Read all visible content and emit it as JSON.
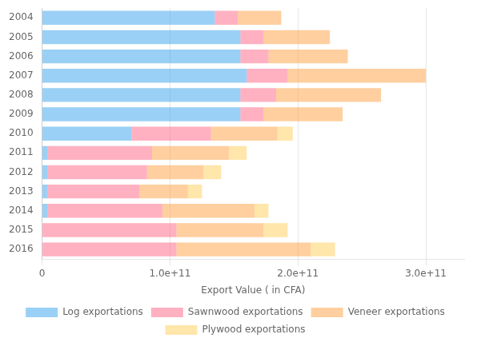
{
  "chart_data": {
    "type": "bar",
    "orientation": "horizontal",
    "stacked": true,
    "categories": [
      "2004",
      "2005",
      "2006",
      "2007",
      "2008",
      "2009",
      "2010",
      "2011",
      "2012",
      "2013",
      "2014",
      "2015",
      "2016"
    ],
    "series": [
      {
        "name": "Log exportations",
        "values": [
          135000000000.0,
          155000000000.0,
          155000000000.0,
          160000000000.0,
          155000000000.0,
          155000000000.0,
          70000000000.0,
          4000000000.0,
          4000000000.0,
          4000000000.0,
          4000000000.0,
          0.0,
          0.0
        ]
      },
      {
        "name": "Sawnwood exportations",
        "values": [
          18000000000.0,
          18000000000.0,
          22000000000.0,
          32000000000.0,
          28000000000.0,
          18000000000.0,
          62000000000.0,
          82000000000.0,
          78000000000.0,
          72000000000.0,
          90000000000.0,
          105000000000.0,
          105000000000.0
        ]
      },
      {
        "name": "Veneer exportations",
        "values": [
          34000000000.0,
          52000000000.0,
          62000000000.0,
          108000000000.0,
          82000000000.0,
          62000000000.0,
          52000000000.0,
          60000000000.0,
          44000000000.0,
          38000000000.0,
          72000000000.0,
          68000000000.0,
          105000000000.0
        ]
      },
      {
        "name": "Plywood exportations",
        "values": [
          0.0,
          0.0,
          0.0,
          0.0,
          0.0,
          0.0,
          12000000000.0,
          14000000000.0,
          14000000000.0,
          11000000000.0,
          11000000000.0,
          19000000000.0,
          19000000000.0
        ]
      }
    ],
    "xlabel": "Export Value ( in CFA)",
    "xlim": [
      0,
      330000000000.0
    ],
    "xticks": [
      0,
      {
        "value": 100000000000.0,
        "label": "1.0e+11"
      },
      {
        "value": 200000000000.0,
        "label": "2.0e+11"
      },
      {
        "value": 300000000000.0,
        "label": "3.0e+11"
      }
    ],
    "grid": true,
    "legend": "bottom"
  }
}
